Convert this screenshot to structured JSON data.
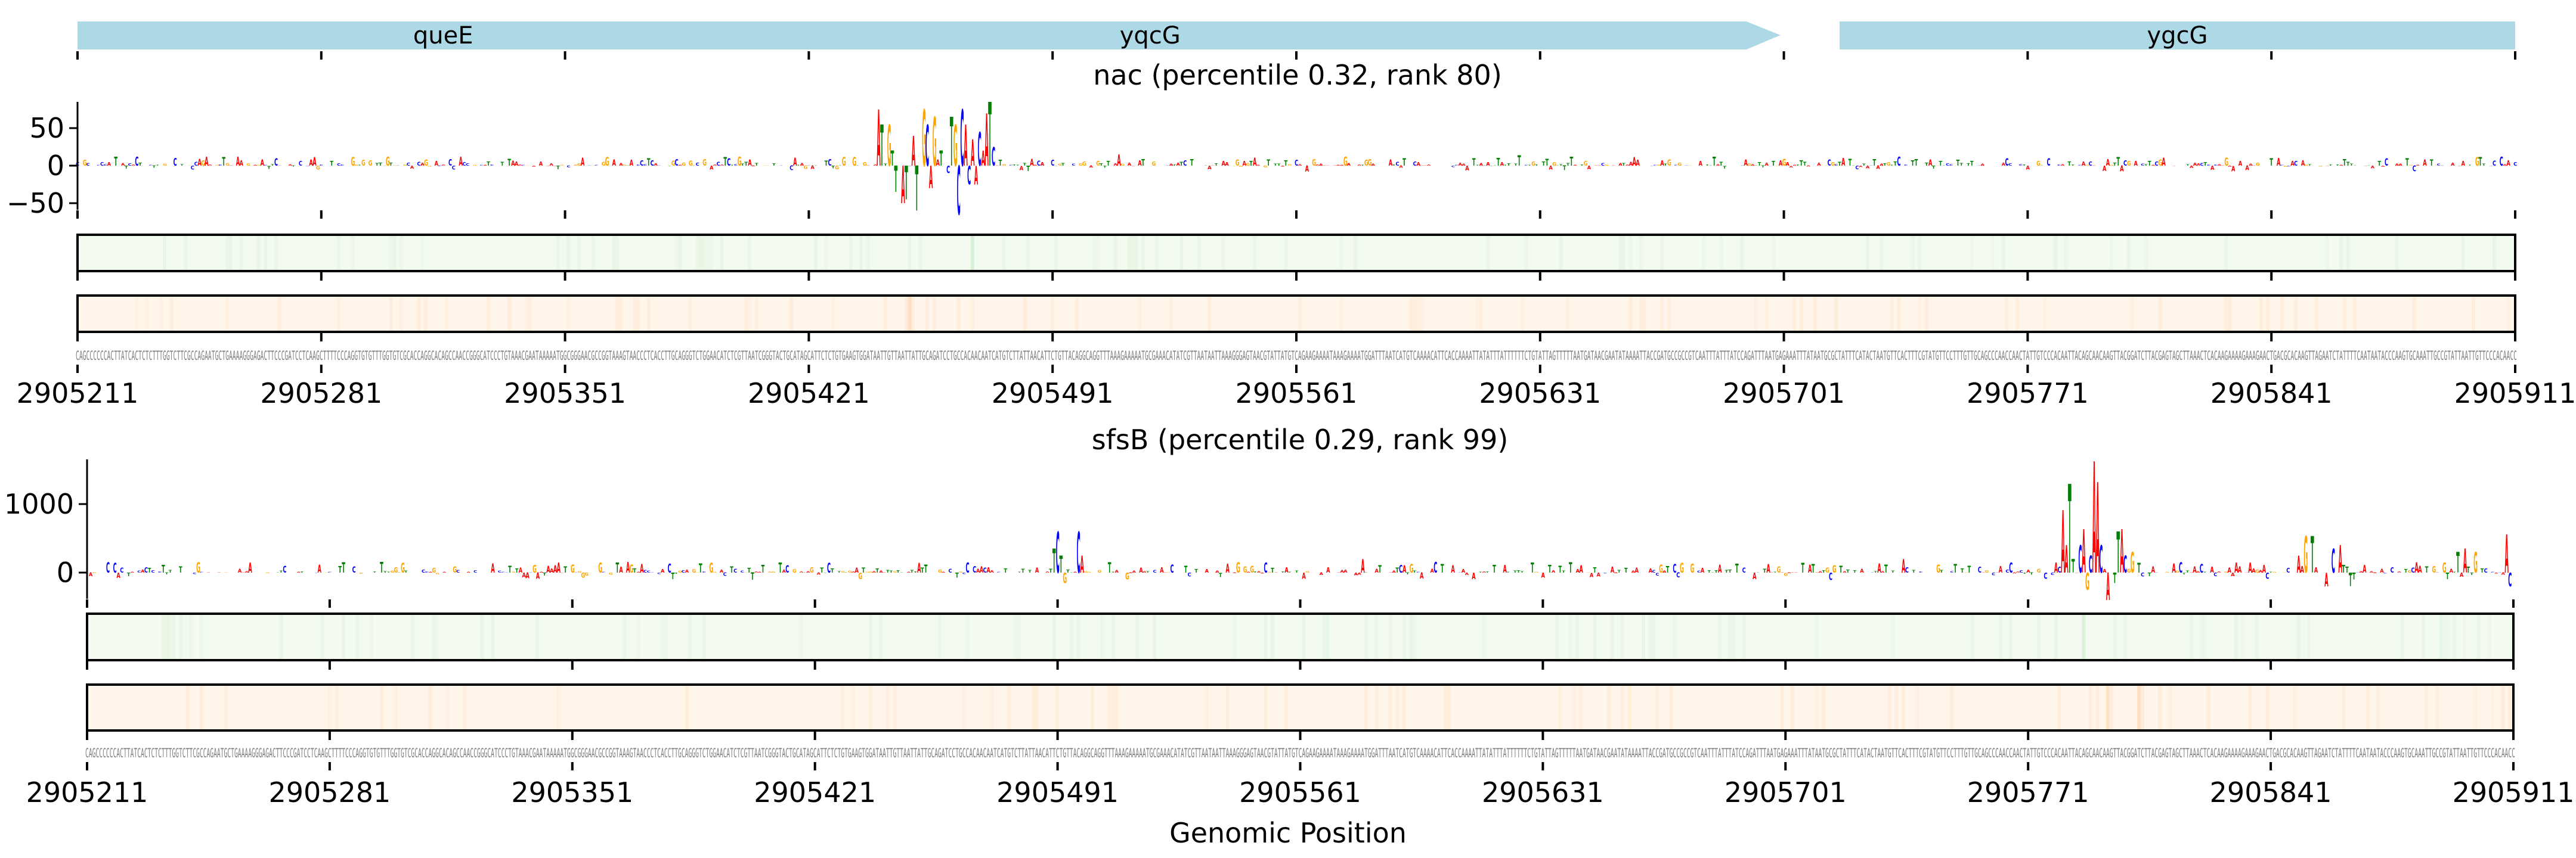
{
  "genes": [
    {
      "name": "queE",
      "start": 2905211,
      "end": 2905421,
      "strand": "none",
      "color": "#add8e6"
    },
    {
      "name": "yqcG",
      "start": 2905338,
      "end": 2905700,
      "strand": "+",
      "color": "#add8e6"
    },
    {
      "name": "ygcG",
      "start": 2905717,
      "end": 2905911,
      "strand": "none",
      "color": "#add8e6"
    }
  ],
  "xlabel": "Genomic Position",
  "base_colors": {
    "A": "#ff0000",
    "C": "#0000ff",
    "G": "#ffa500",
    "T": "#008000"
  },
  "track_colors": {
    "green": "#f3faf0",
    "green_strong": "#c7e9c0",
    "orange": "#fff5eb",
    "orange_strong": "#fdd0a2",
    "border": "#000000"
  },
  "sequence": "CAGCCCCCCACTTATCACTCTCTTTGGTCTTCGCCAGAATGCTGAAAAGGGAGACTTCCCGATCCTCAAGCTTTTCCCAGGTGTGTTTGGTGTCGCACCAGGCACAGCCAACCGGGCATCCCTGTAAACGAATAAAAATGGCGGGAACGCCGGTAAAGTAACCCTCACCTTGCAGGGTCTGGAACATCTCGTTAATCGGGTACTGCATAGCATTCTCTGTGAAGTGGATAATTGTTAATTATTGCAGATCCTGCCACAACAATCATGTCTTATTAACATTCTGTTACAGGCAGGTTTAAAGAAAAATGCGAAACATATCGTTAATAATTAAAGGGAGTAACGTATTATGTCAGAAGAAAATAAAGAAAATGGATTTAATCATGTCAAAACATTCACCAAAATTATATTTATTTTTTCTGTATTAGTTTTTAATGATAACGAATATAAAATTACCGATGCCGCCGTCAATTTATTTATCCAGATTTAATGAGAAATTTATAATGCGCTATTTCATACTAATGTTCACTTTCGTATGTTCCTTTGTTGCAGCCCAACCAACTATTGTCCCACAATTACAGCAACAAGTTACGGATCTTACGAGTAGCTTAAACTCACAAGAAAAGAAAGAACTGACGCACAAGTTAGAATCTATTTTCAATAATACCCAAGTGCAAATTGCCGTATTAATTGTTCCCACAACC",
  "chart_data": [
    {
      "type": "sequence-logo",
      "title": "nac (percentile 0.32, rank 80)",
      "xlabel": "",
      "ylabel": "",
      "xlim": [
        2905211,
        2905911
      ],
      "xticks": [
        "2905211",
        "2905281",
        "2905351",
        "2905421",
        "2905491",
        "2905561",
        "2905631",
        "2905701",
        "2905771",
        "2905841",
        "2905911"
      ],
      "ylim": [
        -60,
        90
      ],
      "yticks": [
        "50",
        "0",
        "−50"
      ],
      "ytick_values": [
        50,
        0,
        -50
      ],
      "peaks": [
        {
          "position": 2905441,
          "value": 75
        },
        {
          "position": 2905442,
          "value": 55
        },
        {
          "position": 2905444,
          "value": 55
        },
        {
          "position": 2905445,
          "value": 20
        },
        {
          "position": 2905446,
          "value": -35
        },
        {
          "position": 2905448,
          "value": -50
        },
        {
          "position": 2905449,
          "value": -45
        },
        {
          "position": 2905451,
          "value": 40
        },
        {
          "position": 2905452,
          "value": -60
        },
        {
          "position": 2905454,
          "value": 75
        },
        {
          "position": 2905455,
          "value": 55
        },
        {
          "position": 2905456,
          "value": -30
        },
        {
          "position": 2905457,
          "value": 65
        },
        {
          "position": 2905459,
          "value": 20
        },
        {
          "position": 2905461,
          "value": -10
        },
        {
          "position": 2905462,
          "value": 65
        },
        {
          "position": 2905463,
          "value": 55
        },
        {
          "position": 2905464,
          "value": -65
        },
        {
          "position": 2905465,
          "value": 75
        },
        {
          "position": 2905466,
          "value": 55
        },
        {
          "position": 2905467,
          "value": -25
        },
        {
          "position": 2905468,
          "value": 35
        },
        {
          "position": 2905469,
          "value": -25
        },
        {
          "position": 2905470,
          "value": 45
        },
        {
          "position": 2905471,
          "value": 20
        },
        {
          "position": 2905472,
          "value": 70
        },
        {
          "position": 2905473,
          "value": 85
        },
        {
          "position": 2905474,
          "value": 25
        },
        {
          "position": 2905510,
          "value": 15
        },
        {
          "position": 2905575,
          "value": 12
        },
        {
          "position": 2905625,
          "value": 14
        },
        {
          "position": 2905640,
          "value": 12
        }
      ],
      "highlights": [
        {
          "track": "green",
          "position": 2905468,
          "intensity": 0.6
        },
        {
          "track": "orange",
          "position": 2905450,
          "intensity": 0.6
        }
      ]
    },
    {
      "type": "sequence-logo",
      "title": "sfsB (percentile 0.29, rank 99)",
      "xlabel": "Genomic Position",
      "ylabel": "",
      "xlim": [
        2905211,
        2905911
      ],
      "xticks": [
        "2905211",
        "2905281",
        "2905351",
        "2905421",
        "2905491",
        "2905561",
        "2905631",
        "2905701",
        "2905771",
        "2905841",
        "2905911"
      ],
      "ylim": [
        -450,
        1650
      ],
      "yticks": [
        "1000",
        "0"
      ],
      "ytick_values": [
        1000,
        0
      ],
      "peaks": [
        {
          "position": 2905217,
          "value": 150
        },
        {
          "position": 2905219,
          "value": 140
        },
        {
          "position": 2905220,
          "value": -80
        },
        {
          "position": 2905268,
          "value": 100
        },
        {
          "position": 2905451,
          "value": 140
        },
        {
          "position": 2905453,
          "value": 120
        },
        {
          "position": 2905490,
          "value": 350
        },
        {
          "position": 2905491,
          "value": 600
        },
        {
          "position": 2905492,
          "value": 250
        },
        {
          "position": 2905493,
          "value": -150
        },
        {
          "position": 2905497,
          "value": 600
        },
        {
          "position": 2905498,
          "value": 250
        },
        {
          "position": 2905506,
          "value": 150
        },
        {
          "position": 2905543,
          "value": 150
        },
        {
          "position": 2905579,
          "value": 200
        },
        {
          "position": 2905682,
          "value": 120
        },
        {
          "position": 2905735,
          "value": 200
        },
        {
          "position": 2905745,
          "value": 120
        },
        {
          "position": 2905781,
          "value": 913
        },
        {
          "position": 2905782,
          "value": 400
        },
        {
          "position": 2905783,
          "value": 1296
        },
        {
          "position": 2905784,
          "value": 200
        },
        {
          "position": 2905786,
          "value": 400
        },
        {
          "position": 2905787,
          "value": 635
        },
        {
          "position": 2905788,
          "value": -250
        },
        {
          "position": 2905789,
          "value": 250
        },
        {
          "position": 2905790,
          "value": 1626
        },
        {
          "position": 2905791,
          "value": 1322
        },
        {
          "position": 2905792,
          "value": 400
        },
        {
          "position": 2905794,
          "value": -400
        },
        {
          "position": 2905796,
          "value": -150
        },
        {
          "position": 2905797,
          "value": 600
        },
        {
          "position": 2905798,
          "value": 635
        },
        {
          "position": 2905799,
          "value": 250
        },
        {
          "position": 2905801,
          "value": 300
        },
        {
          "position": 2905849,
          "value": 250
        },
        {
          "position": 2905851,
          "value": 530
        },
        {
          "position": 2905853,
          "value": 530
        },
        {
          "position": 2905857,
          "value": -200
        },
        {
          "position": 2905859,
          "value": 350
        },
        {
          "position": 2905861,
          "value": 400
        },
        {
          "position": 2905864,
          "value": -200
        },
        {
          "position": 2905895,
          "value": 300
        },
        {
          "position": 2905897,
          "value": 350
        },
        {
          "position": 2905900,
          "value": 300
        },
        {
          "position": 2905909,
          "value": 560
        },
        {
          "position": 2905910,
          "value": -200
        }
      ],
      "highlights": [
        {
          "track": "green",
          "position": 2905787,
          "intensity": 0.35
        },
        {
          "track": "green",
          "position": 2905849,
          "intensity": 0.25
        },
        {
          "track": "orange",
          "position": 2905794,
          "intensity": 0.5
        },
        {
          "track": "orange",
          "position": 2905803,
          "intensity": 0.5
        },
        {
          "track": "orange",
          "position": 2905908,
          "intensity": 0.3
        }
      ]
    }
  ]
}
